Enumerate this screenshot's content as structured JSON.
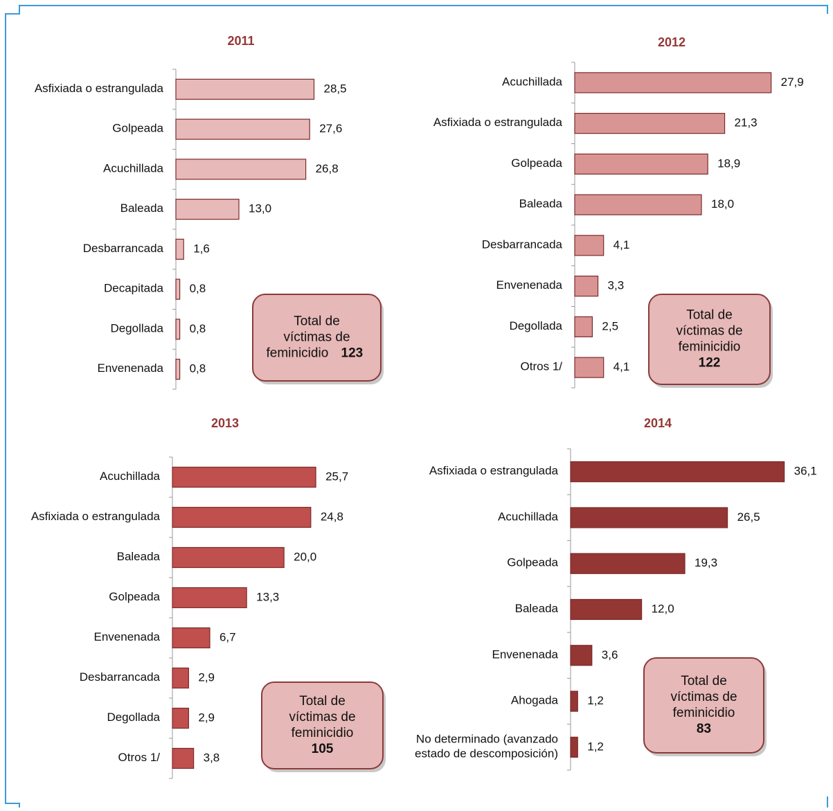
{
  "chart_data": [
    {
      "type": "bar",
      "orientation": "horizontal",
      "title": "2011",
      "color": "#e8b9b9",
      "categories": [
        "Asfixiada o estrangulada",
        "Golpeada",
        "Acuchillada",
        "Baleada",
        "Desbarrancada",
        "Decapitada",
        "Degollada",
        "Envenenada"
      ],
      "values": [
        28.5,
        27.6,
        26.8,
        13.0,
        1.6,
        0.8,
        0.8,
        0.8
      ],
      "value_labels": [
        "28,5",
        "27,6",
        "26,8",
        "13,0",
        "1,6",
        "0,8",
        "0,8",
        "0,8"
      ],
      "xlim": [
        0,
        40
      ],
      "total_label": "Total de\nvíctimas de\nfeminicidio",
      "total": 123
    },
    {
      "type": "bar",
      "orientation": "horizontal",
      "title": "2012",
      "color": "#d99594",
      "categories": [
        "Acuchillada",
        "Asfixiada o estrangulada",
        "Golpeada",
        "Baleada",
        "Desbarrancada",
        "Envenenada",
        "Degollada",
        "Otros 1/"
      ],
      "values": [
        27.9,
        21.3,
        18.9,
        18.0,
        4.1,
        3.3,
        2.5,
        4.1
      ],
      "value_labels": [
        "27,9",
        "21,3",
        "18,9",
        "18,0",
        "4,1",
        "3,3",
        "2,5",
        "4,1"
      ],
      "xlim": [
        0,
        30
      ],
      "total_label": "Total de\nvíctimas de\nfeminicidio",
      "total": 122
    },
    {
      "type": "bar",
      "orientation": "horizontal",
      "title": "2013",
      "color": "#c0504d",
      "categories": [
        "Acuchillada",
        "Asfixiada o estrangulada",
        "Baleada",
        "Golpeada",
        "Envenenada",
        "Desbarrancada",
        "Degollada",
        "Otros 1/"
      ],
      "values": [
        25.7,
        24.8,
        20.0,
        13.3,
        6.7,
        2.9,
        2.9,
        3.8
      ],
      "value_labels": [
        "25,7",
        "24,8",
        "20,0",
        "13,3",
        "6,7",
        "2,9",
        "2,9",
        "3,8"
      ],
      "xlim": [
        0,
        35
      ],
      "total_label": "Total de\nvíctimas de\nfeminicidio",
      "total": 105
    },
    {
      "type": "bar",
      "orientation": "horizontal",
      "title": "2014",
      "color": "#943634",
      "categories": [
        "Asfixiada o estrangulada",
        "Acuchillada",
        "Golpeada",
        "Baleada",
        "Envenenada",
        "Ahogada",
        "No determinado (avanzado\nestado de descomposición)"
      ],
      "values": [
        36.1,
        26.5,
        19.3,
        12.0,
        3.6,
        1.2,
        1.2
      ],
      "value_labels": [
        "36,1",
        "26,5",
        "19,3",
        "12,0",
        "3,6",
        "1,2",
        "1,2"
      ],
      "xlim": [
        0,
        40
      ],
      "total_label": "Total de\nvíctimas de\nfeminicidio",
      "total": 83
    }
  ]
}
